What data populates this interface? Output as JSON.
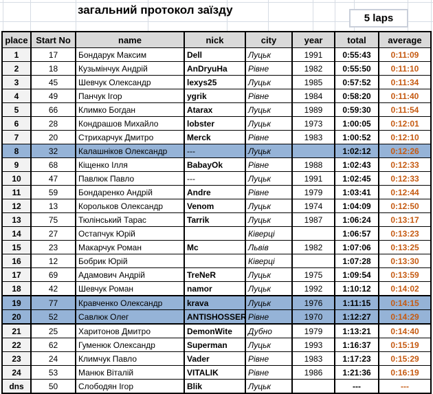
{
  "title": "загальний протокол заїзду",
  "laps_badge": "5 laps",
  "columns": [
    "place",
    "Start No",
    "name",
    "nick",
    "city",
    "year",
    "total",
    "average"
  ],
  "colors": {
    "highlight_row": "#95b3d7",
    "average_text": "#c55a11",
    "header_bg": "#d9d9d9",
    "place_col_bg": "#f2f2f2"
  },
  "rows": [
    {
      "place": "1",
      "start_no": "17",
      "name": "Бондарук Максим",
      "nick": "Dell",
      "city": "Луцьк",
      "year": "1991",
      "total": "0:55:43",
      "average": "0:11:09"
    },
    {
      "place": "2",
      "start_no": "18",
      "name": "Кузьмінчук Андрій",
      "nick": "AnDryuHa",
      "city": "Рівне",
      "year": "1982",
      "total": "0:55:50",
      "average": "0:11:10"
    },
    {
      "place": "3",
      "start_no": "45",
      "name": "Шевчук Олександр",
      "nick": "lexys25",
      "city": "Луцьк",
      "year": "1985",
      "total": "0:57:52",
      "average": "0:11:34"
    },
    {
      "place": "4",
      "start_no": "49",
      "name": "Панчук Ігор",
      "nick": "ygrik",
      "city": "Рівне",
      "year": "1984",
      "total": "0:58:20",
      "average": "0:11:40"
    },
    {
      "place": "5",
      "start_no": "66",
      "name": "Климко Богдан",
      "nick": "Atarax",
      "city": "Луцьк",
      "year": "1989",
      "total": "0:59:30",
      "average": "0:11:54"
    },
    {
      "place": "6",
      "start_no": "28",
      "name": "Кондрашов Михайло",
      "nick": "lobster",
      "city": "Луцьк",
      "year": "1973",
      "total": "1:00:05",
      "average": "0:12:01"
    },
    {
      "place": "7",
      "start_no": "20",
      "name": "Стрихарчук Дмитро",
      "nick": "Merck",
      "city": "Рівне",
      "year": "1983",
      "total": "1:00:52",
      "average": "0:12:10"
    },
    {
      "place": "8",
      "start_no": "32",
      "name": "Калашніков Олександр",
      "nick": "---",
      "nick_plain": true,
      "city": "Луцьк",
      "year": "",
      "total": "1:02:12",
      "average": "0:12:26",
      "highlight": true
    },
    {
      "place": "9",
      "start_no": "68",
      "name": "Кіщенко Ілля",
      "nick": "BabayOk",
      "city": "Рівне",
      "year": "1988",
      "total": "1:02:43",
      "average": "0:12:33"
    },
    {
      "place": "10",
      "start_no": "47",
      "name": "Павлюк Павло",
      "nick": "---",
      "nick_plain": true,
      "city": "Луцьк",
      "year": "1991",
      "total": "1:02:45",
      "average": "0:12:33"
    },
    {
      "place": "11",
      "start_no": "59",
      "name": "Бондаренко Андрій",
      "nick": "Andre",
      "city": "Рівне",
      "year": "1979",
      "total": "1:03:41",
      "average": "0:12:44"
    },
    {
      "place": "12",
      "start_no": "13",
      "name": "Корольков Олександр",
      "nick": "Venom",
      "city": "Луцьк",
      "year": "1974",
      "total": "1:04:09",
      "average": "0:12:50"
    },
    {
      "place": "13",
      "start_no": "75",
      "name": "Тюлінський Тарас",
      "nick": "Tarrik",
      "city": "Луцьк",
      "year": "1987",
      "total": "1:06:24",
      "average": "0:13:17"
    },
    {
      "place": "14",
      "start_no": "27",
      "name": "Остапчук Юрій",
      "nick": "",
      "city": "Ківерці",
      "year": "",
      "total": "1:06:57",
      "average": "0:13:23"
    },
    {
      "place": "15",
      "start_no": "23",
      "name": "Макарчук Роман",
      "nick": "Mc",
      "city": "Львів",
      "year": "1982",
      "total": "1:07:06",
      "average": "0:13:25"
    },
    {
      "place": "16",
      "start_no": "12",
      "name": "Бобрик Юрій",
      "nick": "",
      "city": "Ківерці",
      "year": "",
      "total": "1:07:28",
      "average": "0:13:30"
    },
    {
      "place": "17",
      "start_no": "69",
      "name": "Адамович Андрій",
      "nick": "TreNeR",
      "city": "Луцьк",
      "year": "1975",
      "total": "1:09:54",
      "average": "0:13:59"
    },
    {
      "place": "18",
      "start_no": "42",
      "name": "Шевчук Роман",
      "nick": "namor",
      "city": "Луцьк",
      "year": "1992",
      "total": "1:10:12",
      "average": "0:14:02"
    },
    {
      "place": "19",
      "start_no": "77",
      "name": "Кравченко Олександр",
      "nick": "krava",
      "city": "Луцьк",
      "year": "1976",
      "total": "1:11:15",
      "average": "0:14:15",
      "highlight": true,
      "thick_top": true
    },
    {
      "place": "20",
      "start_no": "52",
      "name": "Савлюк Олег",
      "nick": "ANTISHOSSER",
      "city": "Рівне",
      "year": "1970",
      "total": "1:12:27",
      "average": "0:14:29",
      "highlight": true,
      "thick_bottom": true
    },
    {
      "place": "21",
      "start_no": "25",
      "name": "Харитонов Дмитро",
      "nick": "DemonWite",
      "city": "Дубно",
      "year": "1979",
      "total": "1:13:21",
      "average": "0:14:40"
    },
    {
      "place": "22",
      "start_no": "62",
      "name": "Гуменюк Олександр",
      "nick": "Superman",
      "city": "Луцьк",
      "year": "1993",
      "total": "1:16:37",
      "average": "0:15:19"
    },
    {
      "place": "23",
      "start_no": "24",
      "name": "Климчук Павло",
      "nick": "Vader",
      "city": "Рівне",
      "year": "1983",
      "total": "1:17:23",
      "average": "0:15:29"
    },
    {
      "place": "24",
      "start_no": "53",
      "name": "Манюк Віталій",
      "nick": "VITALIK",
      "city": "Рівне",
      "year": "1986",
      "total": "1:21:36",
      "average": "0:16:19"
    },
    {
      "place": "dns",
      "start_no": "50",
      "name": "Слободян Ігор",
      "nick": "Blik",
      "city": "Луцьк",
      "year": "",
      "total": "---",
      "average": "---"
    }
  ]
}
